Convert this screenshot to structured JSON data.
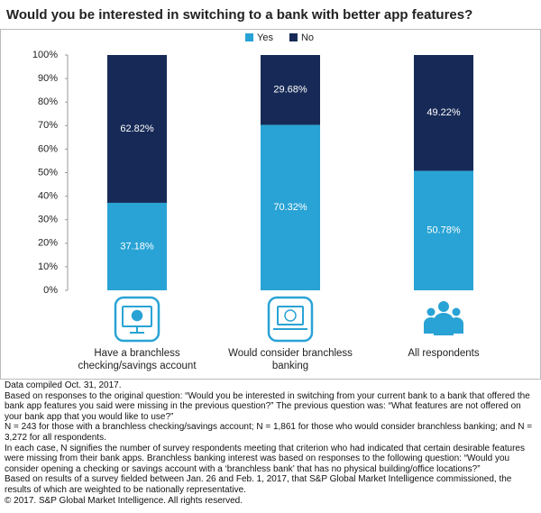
{
  "chart_data": {
    "type": "stacked_bar",
    "title": "Would you be interested in switching to a bank with better app features?",
    "categories": [
      "Have a branchless checking/savings account",
      "Would consider branchless banking",
      "All respondents"
    ],
    "series": [
      {
        "name": "Yes",
        "color": "#29a3d5",
        "values": [
          37.18,
          70.32,
          50.78
        ],
        "value_labels": [
          "37.18%",
          "70.32%",
          "50.78%"
        ]
      },
      {
        "name": "No",
        "color": "#172a57",
        "values": [
          62.82,
          29.68,
          49.22
        ],
        "value_labels": [
          "62.82%",
          "29.68%",
          "49.22%"
        ]
      }
    ],
    "ylim": [
      0,
      100
    ],
    "yticks": [
      {
        "value": 0,
        "label": "0%"
      },
      {
        "value": 10,
        "label": "10%"
      },
      {
        "value": 20,
        "label": "20%"
      },
      {
        "value": 30,
        "label": "30%"
      },
      {
        "value": 40,
        "label": "40%"
      },
      {
        "value": 50,
        "label": "50%"
      },
      {
        "value": 60,
        "label": "60%"
      },
      {
        "value": 70,
        "label": "70%"
      },
      {
        "value": 80,
        "label": "80%"
      },
      {
        "value": 90,
        "label": "90%"
      },
      {
        "value": 100,
        "label": "100%"
      }
    ],
    "legend": "top",
    "notes": [
      "Data compiled Oct. 31, 2017.",
      "Based on responses to the original question: “Would you be interested in switching from your current bank to a bank that offered the bank app features you said were missing in the previous question?” The previous question was: “What features are not offered on your bank app that you would like to use?”",
      "N = 243 for those with a branchless checking/savings account; N = 1,861 for those who would consider branchless banking; and N = 3,272 for all respondents.",
      "In each case, N signifies the number of survey respondents meeting that criterion who had indicated that certain desirable features were missing from their bank apps. Branchless banking interest was based on responses to the following question: “Would you consider opening a checking or savings account with a ‘branchless bank’ that has no physical building/office locations?”",
      "Based on results of a survey fielded between Jan. 26 and Feb. 1, 2017, that S&P Global Market Intelligence commissioned, the results of which are weighted to be nationally representative.",
      "© 2017. S&P Global Market Intelligence. All rights reserved."
    ]
  }
}
